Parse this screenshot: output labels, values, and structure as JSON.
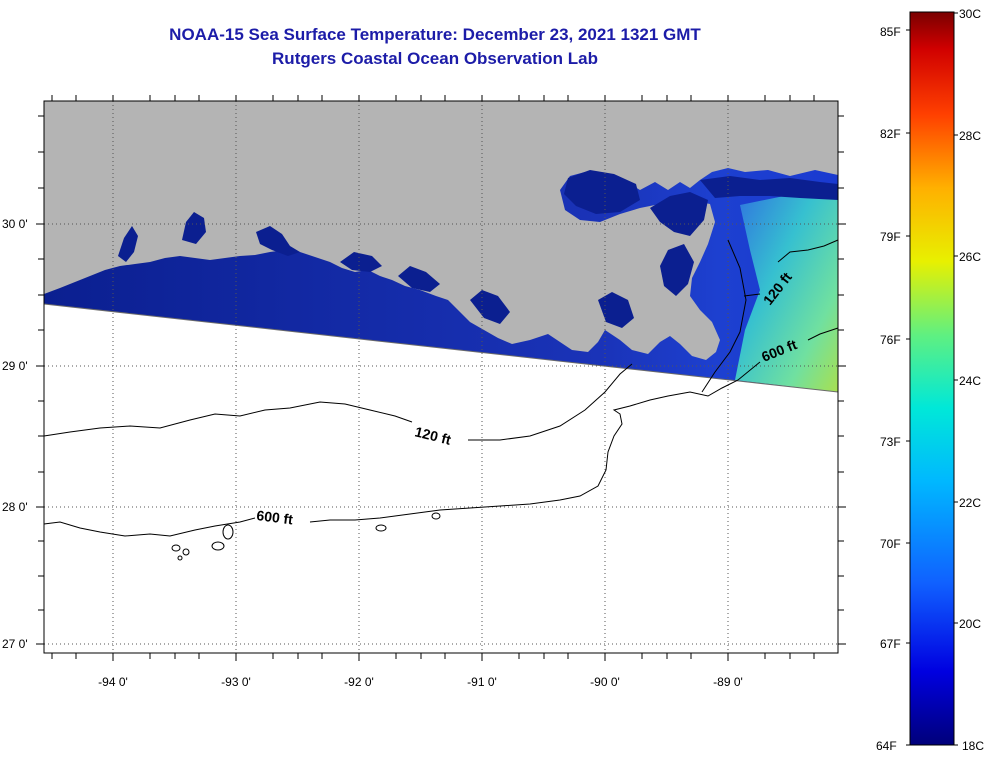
{
  "header": {
    "title": "NOAA-15 Sea Surface Temperature:  December 23, 2021 1321 GMT",
    "subtitle": "Rutgers Coastal Ocean Observation Lab"
  },
  "map": {
    "lat_labels": [
      "30 0'",
      "29 0'",
      "28 0'",
      "27 0'"
    ],
    "lon_labels": [
      "-94 0'",
      "-93 0'",
      "-92 0'",
      "-91 0'",
      "-90 0'",
      "-89 0'"
    ],
    "contours": [
      {
        "name": "contour-120ft",
        "label": "120 ft"
      },
      {
        "name": "contour-600ft",
        "label": "600 ft"
      }
    ],
    "contour_label_instances": [
      "120 ft",
      "600 ft",
      "120 ft",
      "600 ft"
    ]
  },
  "colorbar": {
    "fahrenheit_labels": [
      "85F",
      "82F",
      "79F",
      "76F",
      "73F",
      "70F",
      "67F",
      "64F"
    ],
    "celsius_labels": [
      "30C",
      "28C",
      "26C",
      "24C",
      "22C",
      "20C",
      "18C"
    ]
  },
  "colors": {
    "title": "#1c1ca8",
    "land": "#b4b4b4",
    "water_cold": "#0a1f8f",
    "water_warm": "#9de05a"
  }
}
